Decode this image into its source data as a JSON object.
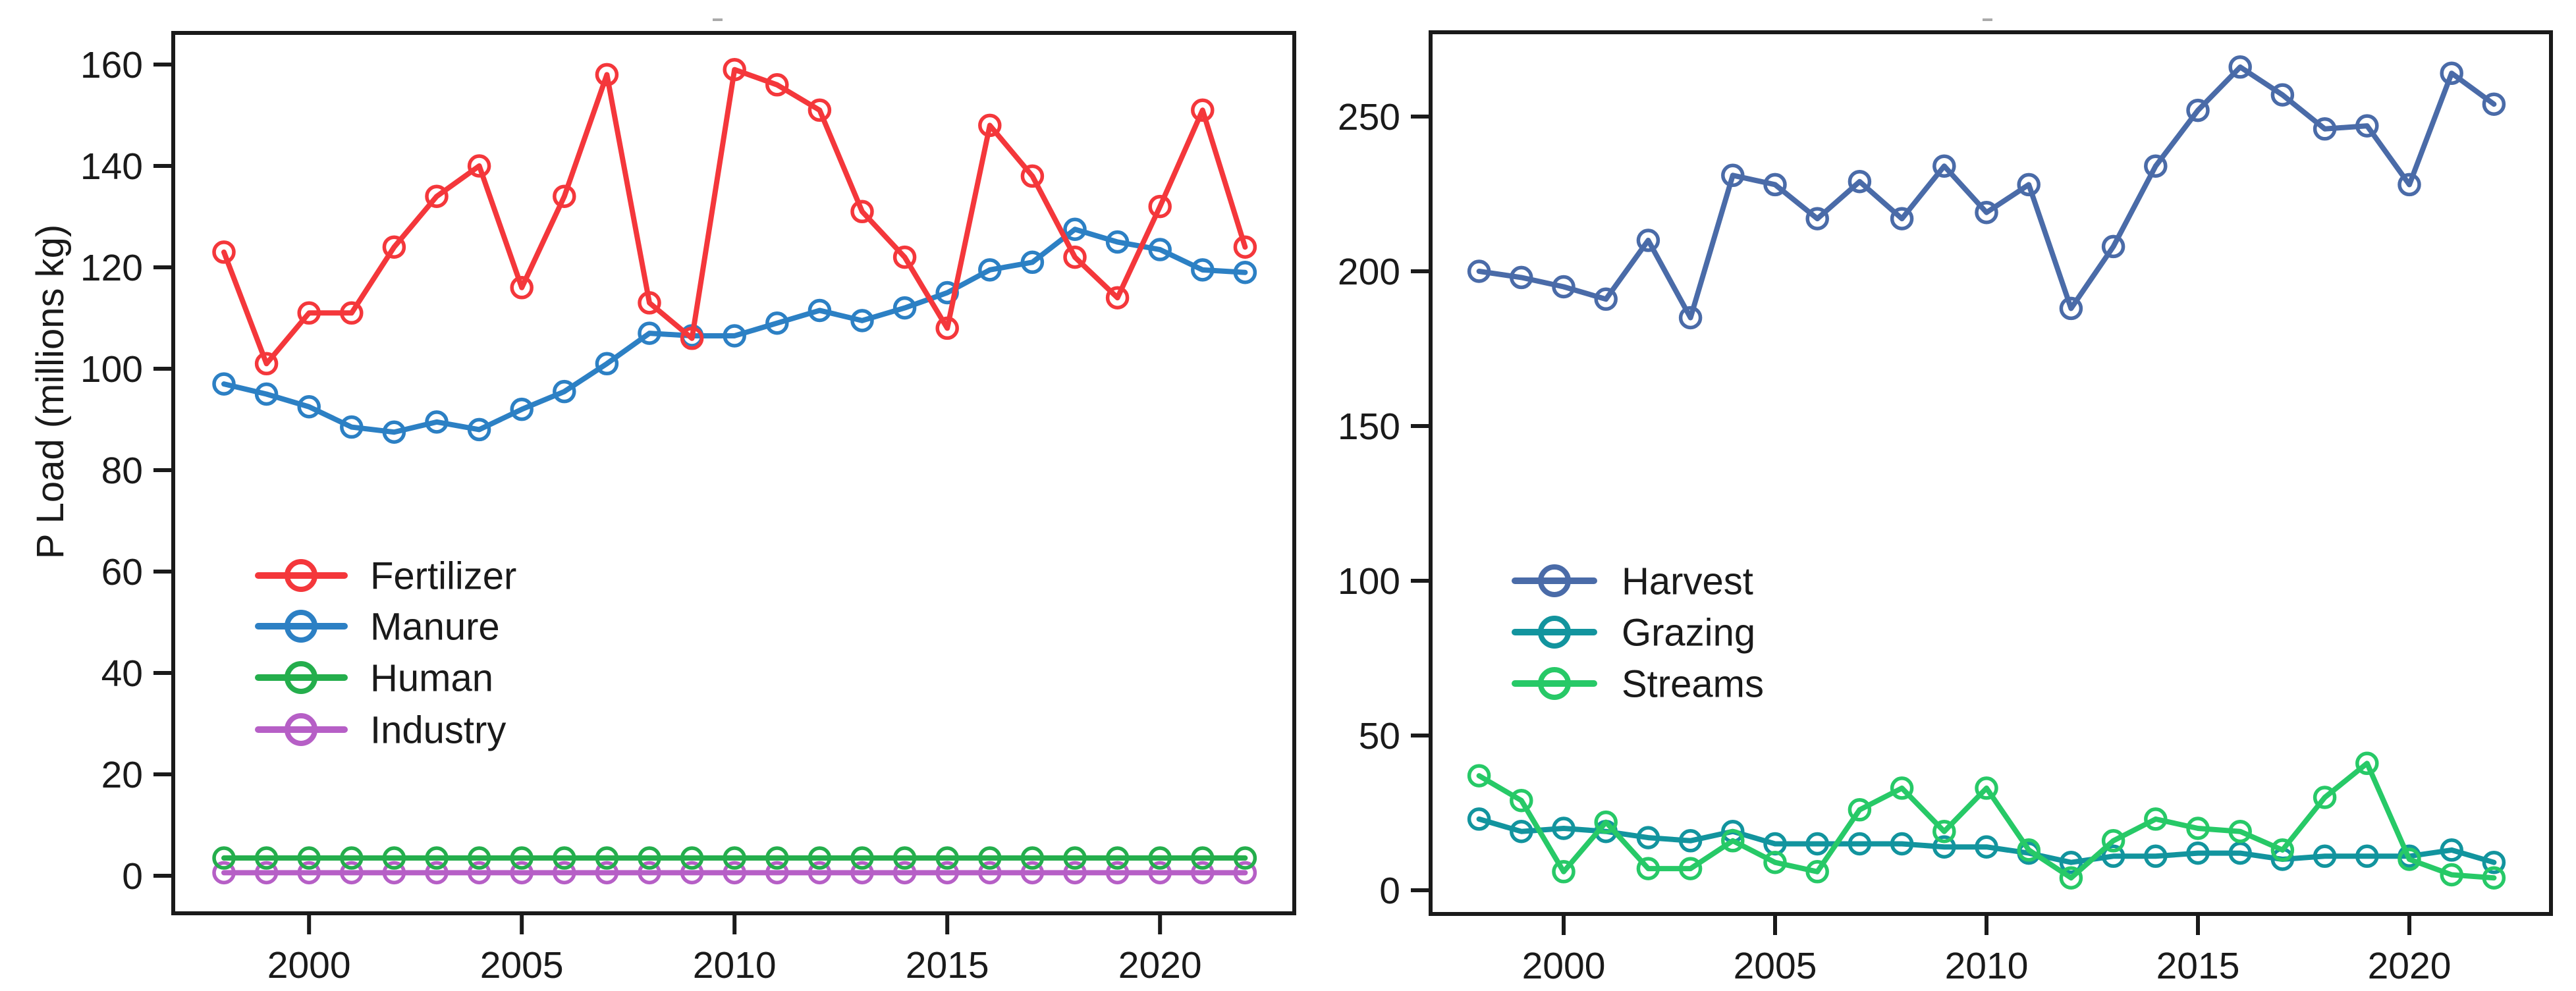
{
  "figure": {
    "y_axis_label": "P Load (millions kg)"
  },
  "chart_data": [
    {
      "type": "line",
      "panel": "left",
      "title": "",
      "xlabel": "",
      "ylabel": "P Load (millions kg)",
      "x": [
        1998,
        1999,
        2000,
        2001,
        2002,
        2003,
        2004,
        2005,
        2006,
        2007,
        2008,
        2009,
        2010,
        2011,
        2012,
        2013,
        2014,
        2015,
        2016,
        2017,
        2018,
        2019,
        2020,
        2021,
        2022
      ],
      "xticks": [
        2000,
        2005,
        2010,
        2015,
        2020
      ],
      "yticks": [
        0,
        20,
        40,
        60,
        80,
        100,
        120,
        140,
        160
      ],
      "xlim": [
        1996.8,
        2023.2
      ],
      "ylim": [
        -7.4,
        166.2
      ],
      "grid": "off",
      "legend_position": "center-left",
      "draw_order": [
        3,
        2,
        1,
        0
      ],
      "series": [
        {
          "name": "Fertilizer",
          "color": "#F4373B",
          "values": [
            123,
            101,
            111,
            111,
            124,
            134,
            140,
            116,
            134,
            158,
            113,
            106,
            159,
            156,
            151,
            131,
            122,
            108,
            148,
            138,
            122,
            114,
            132,
            151,
            124
          ]
        },
        {
          "name": "Manure",
          "color": "#2C80C4",
          "values": [
            97,
            95,
            92.5,
            88.5,
            87.5,
            89.5,
            88,
            92,
            95.5,
            101,
            107,
            106.5,
            106.5,
            109,
            111.5,
            109.5,
            112,
            115,
            119.5,
            121,
            127.5,
            125,
            123.5,
            119.5,
            119
          ]
        },
        {
          "name": "Human",
          "color": "#24AE4C",
          "values": [
            3.5,
            3.5,
            3.5,
            3.5,
            3.5,
            3.5,
            3.5,
            3.5,
            3.5,
            3.5,
            3.5,
            3.5,
            3.5,
            3.5,
            3.5,
            3.5,
            3.5,
            3.5,
            3.5,
            3.5,
            3.5,
            3.5,
            3.5,
            3.5,
            3.5
          ]
        },
        {
          "name": "Industry",
          "color": "#B65FC6",
          "values": [
            0.6,
            0.6,
            0.6,
            0.6,
            0.6,
            0.6,
            0.6,
            0.6,
            0.6,
            0.6,
            0.6,
            0.6,
            0.6,
            0.6,
            0.6,
            0.6,
            0.6,
            0.6,
            0.6,
            0.6,
            0.6,
            0.6,
            0.6,
            0.6,
            0.6
          ]
        }
      ]
    },
    {
      "type": "line",
      "panel": "right",
      "title": "",
      "xlabel": "",
      "ylabel": "",
      "x": [
        1998,
        1999,
        2000,
        2001,
        2002,
        2003,
        2004,
        2005,
        2006,
        2007,
        2008,
        2009,
        2010,
        2011,
        2012,
        2013,
        2014,
        2015,
        2016,
        2017,
        2018,
        2019,
        2020,
        2021,
        2022
      ],
      "xticks": [
        2000,
        2005,
        2010,
        2015,
        2020
      ],
      "yticks": [
        0,
        50,
        100,
        150,
        200,
        250
      ],
      "xlim": [
        1996.4,
        2022.9
      ],
      "ylim": [
        -7.7,
        277.2
      ],
      "grid": "off",
      "legend_position": "center-left",
      "draw_order": [
        0,
        1,
        2
      ],
      "series": [
        {
          "name": "Harvest",
          "color": "#4A6BA8",
          "values": [
            200,
            198,
            195,
            191,
            210,
            185,
            231,
            228,
            217,
            229,
            217,
            234,
            219,
            228,
            188,
            208,
            234,
            252,
            266,
            257,
            246,
            247,
            228,
            264,
            254
          ]
        },
        {
          "name": "Grazing",
          "color": "#12949E",
          "values": [
            23,
            19,
            20,
            19,
            17,
            16,
            19,
            15,
            15,
            15,
            15,
            14,
            14,
            12,
            9,
            11,
            11,
            12,
            12,
            10,
            11,
            11,
            11,
            13,
            9
          ]
        },
        {
          "name": "Streams",
          "color": "#27C967",
          "values": [
            37,
            29,
            6,
            22,
            7,
            7,
            16,
            9,
            6,
            26,
            33,
            19,
            33,
            13,
            4,
            16,
            23,
            20,
            19,
            13,
            30,
            41,
            10,
            5,
            4
          ]
        }
      ]
    }
  ]
}
